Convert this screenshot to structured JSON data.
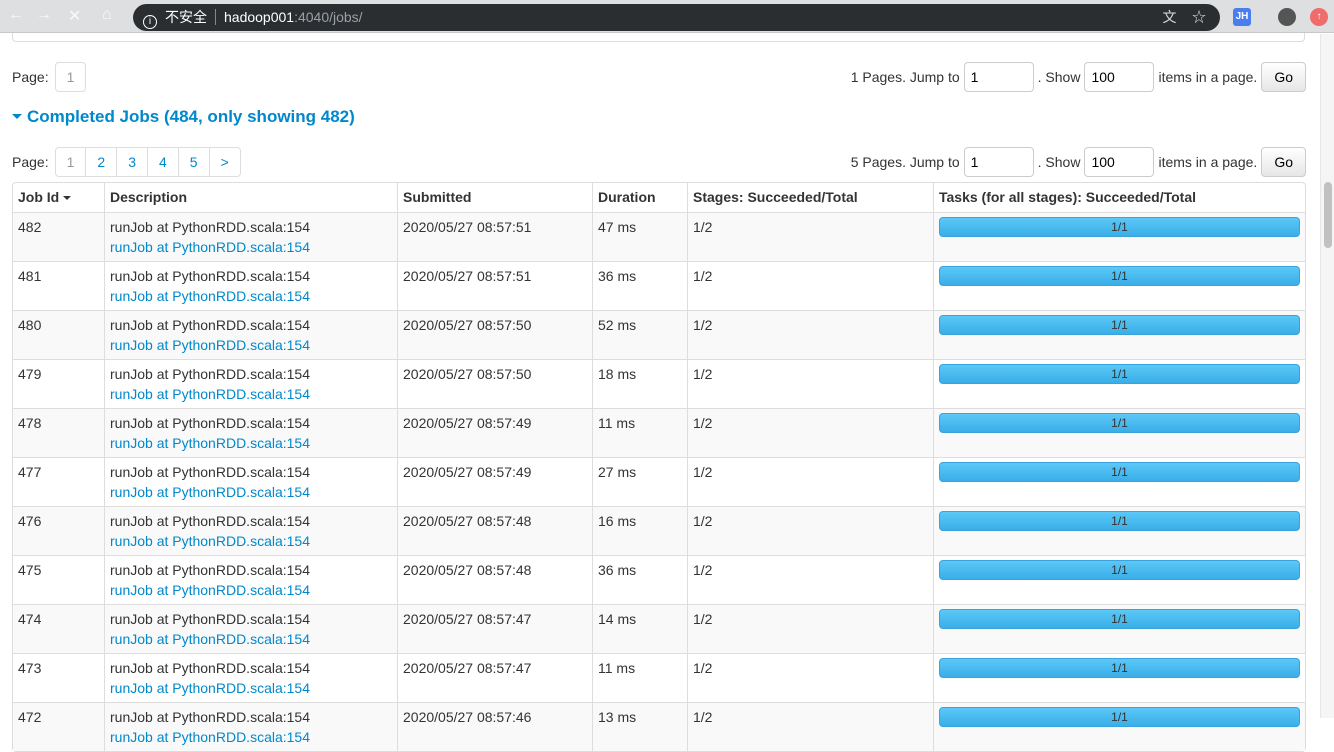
{
  "browser": {
    "url_host": "hadoop001",
    "url_rest": ":4040/jobs/",
    "security_label": "不安全",
    "ext_label": "JH"
  },
  "top_pager": {
    "label": "Page:",
    "pages": [
      "1"
    ],
    "summary": "1 Pages. Jump to",
    "jump_value": "1",
    "show_label": ". Show",
    "show_value": "100",
    "items_label": "items in a page.",
    "go": "Go"
  },
  "section": {
    "title": "Completed Jobs (484, only showing 482)"
  },
  "pager": {
    "label": "Page:",
    "pages": [
      "1",
      "2",
      "3",
      "4",
      "5",
      ">"
    ],
    "active": "1",
    "summary": "5 Pages. Jump to",
    "jump_value": "1",
    "show_label": ". Show",
    "show_value": "100",
    "items_label": "items in a page.",
    "go": "Go"
  },
  "table": {
    "headers": [
      "Job Id",
      "Description",
      "Submitted",
      "Duration",
      "Stages: Succeeded/Total",
      "Tasks (for all stages): Succeeded/Total"
    ],
    "rows": [
      {
        "id": "482",
        "desc": "runJob at PythonRDD.scala:154",
        "link": "runJob at PythonRDD.scala:154",
        "submitted": "2020/05/27 08:57:51",
        "duration": "47 ms",
        "stages": "1/2",
        "tasks": "1/1"
      },
      {
        "id": "481",
        "desc": "runJob at PythonRDD.scala:154",
        "link": "runJob at PythonRDD.scala:154",
        "submitted": "2020/05/27 08:57:51",
        "duration": "36 ms",
        "stages": "1/2",
        "tasks": "1/1"
      },
      {
        "id": "480",
        "desc": "runJob at PythonRDD.scala:154",
        "link": "runJob at PythonRDD.scala:154",
        "submitted": "2020/05/27 08:57:50",
        "duration": "52 ms",
        "stages": "1/2",
        "tasks": "1/1"
      },
      {
        "id": "479",
        "desc": "runJob at PythonRDD.scala:154",
        "link": "runJob at PythonRDD.scala:154",
        "submitted": "2020/05/27 08:57:50",
        "duration": "18 ms",
        "stages": "1/2",
        "tasks": "1/1"
      },
      {
        "id": "478",
        "desc": "runJob at PythonRDD.scala:154",
        "link": "runJob at PythonRDD.scala:154",
        "submitted": "2020/05/27 08:57:49",
        "duration": "11 ms",
        "stages": "1/2",
        "tasks": "1/1"
      },
      {
        "id": "477",
        "desc": "runJob at PythonRDD.scala:154",
        "link": "runJob at PythonRDD.scala:154",
        "submitted": "2020/05/27 08:57:49",
        "duration": "27 ms",
        "stages": "1/2",
        "tasks": "1/1"
      },
      {
        "id": "476",
        "desc": "runJob at PythonRDD.scala:154",
        "link": "runJob at PythonRDD.scala:154",
        "submitted": "2020/05/27 08:57:48",
        "duration": "16 ms",
        "stages": "1/2",
        "tasks": "1/1"
      },
      {
        "id": "475",
        "desc": "runJob at PythonRDD.scala:154",
        "link": "runJob at PythonRDD.scala:154",
        "submitted": "2020/05/27 08:57:48",
        "duration": "36 ms",
        "stages": "1/2",
        "tasks": "1/1"
      },
      {
        "id": "474",
        "desc": "runJob at PythonRDD.scala:154",
        "link": "runJob at PythonRDD.scala:154",
        "submitted": "2020/05/27 08:57:47",
        "duration": "14 ms",
        "stages": "1/2",
        "tasks": "1/1"
      },
      {
        "id": "473",
        "desc": "runJob at PythonRDD.scala:154",
        "link": "runJob at PythonRDD.scala:154",
        "submitted": "2020/05/27 08:57:47",
        "duration": "11 ms",
        "stages": "1/2",
        "tasks": "1/1"
      },
      {
        "id": "472",
        "desc": "runJob at PythonRDD.scala:154",
        "link": "runJob at PythonRDD.scala:154",
        "submitted": "2020/05/27 08:57:46",
        "duration": "13 ms",
        "stages": "1/2",
        "tasks": "1/1"
      }
    ]
  },
  "colors": {
    "accent": "#0088cc",
    "progress": "#4bbcf0"
  }
}
